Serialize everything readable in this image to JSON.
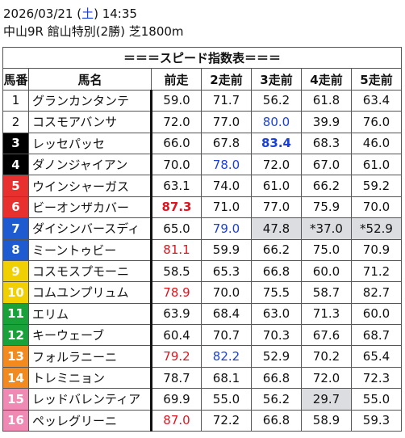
{
  "header": {
    "date": "2026/03/21 (",
    "weekday": "土",
    "time": ") 14:35",
    "race": "中山9R 館山特別(2勝) 芝1800m"
  },
  "table": {
    "title": "＝＝＝スピード指数表＝＝＝",
    "columns": [
      "馬番",
      "馬名",
      "前走",
      "2走前",
      "3走前",
      "4走前",
      "5走前"
    ],
    "rows": [
      {
        "num": "1",
        "name": "グランカンタンテ",
        "v": [
          "59.0",
          "71.7",
          "56.2",
          "61.8",
          "63.4"
        ]
      },
      {
        "num": "2",
        "name": "コスモアバンサ",
        "v": [
          "72.0",
          "77.0",
          "80.0",
          "39.9",
          "76.0"
        ]
      },
      {
        "num": "3",
        "name": "レッセパッセ",
        "v": [
          "66.0",
          "67.8",
          "83.4",
          "68.3",
          "46.0"
        ]
      },
      {
        "num": "4",
        "name": "ダノンジャイアン",
        "v": [
          "70.0",
          "78.0",
          "72.0",
          "67.0",
          "61.0"
        ]
      },
      {
        "num": "5",
        "name": "ウインシャーガス",
        "v": [
          "63.1",
          "74.0",
          "61.0",
          "66.2",
          "59.2"
        ]
      },
      {
        "num": "6",
        "name": "ビーオンザカバー",
        "v": [
          "87.3",
          "71.0",
          "77.0",
          "75.9",
          "70.0"
        ]
      },
      {
        "num": "7",
        "name": "ダイシンバースディ",
        "v": [
          "65.0",
          "79.0",
          "47.8",
          "*37.0",
          "*52.9"
        ]
      },
      {
        "num": "8",
        "name": "ミーントゥビー",
        "v": [
          "81.1",
          "59.9",
          "66.2",
          "75.0",
          "70.9"
        ]
      },
      {
        "num": "9",
        "name": "コスモスプモーニ",
        "v": [
          "58.5",
          "65.3",
          "66.8",
          "60.0",
          "71.2"
        ]
      },
      {
        "num": "10",
        "name": "コムユンプリュム",
        "v": [
          "78.9",
          "70.0",
          "75.5",
          "58.7",
          "82.7"
        ]
      },
      {
        "num": "11",
        "name": "エリム",
        "v": [
          "63.9",
          "68.4",
          "63.0",
          "71.3",
          "60.0"
        ]
      },
      {
        "num": "12",
        "name": "キーウェーブ",
        "v": [
          "60.4",
          "70.7",
          "70.3",
          "67.6",
          "68.7"
        ]
      },
      {
        "num": "13",
        "name": "フォルラニーニ",
        "v": [
          "79.2",
          "82.2",
          "52.9",
          "70.2",
          "65.4"
        ]
      },
      {
        "num": "14",
        "name": "トレミニョン",
        "v": [
          "78.7",
          "68.1",
          "66.8",
          "72.0",
          "72.3"
        ]
      },
      {
        "num": "15",
        "name": "レッドバレンティア",
        "v": [
          "69.9",
          "55.0",
          "56.2",
          "29.7",
          "55.0"
        ]
      },
      {
        "num": "16",
        "name": "ペッレグリーニ",
        "v": [
          "87.0",
          "72.2",
          "66.8",
          "58.9",
          "59.3"
        ]
      }
    ]
  },
  "colors": {
    "gate": [
      "#ffffff",
      "#000000",
      "#e8312f",
      "#1e5bd0",
      "#f0d000",
      "#1aa23a",
      "#f28a1e",
      "#f089b4"
    ],
    "red_value": "#e0141e",
    "blue_value": "#1a3fd6",
    "shade": "#dcdde1"
  }
}
